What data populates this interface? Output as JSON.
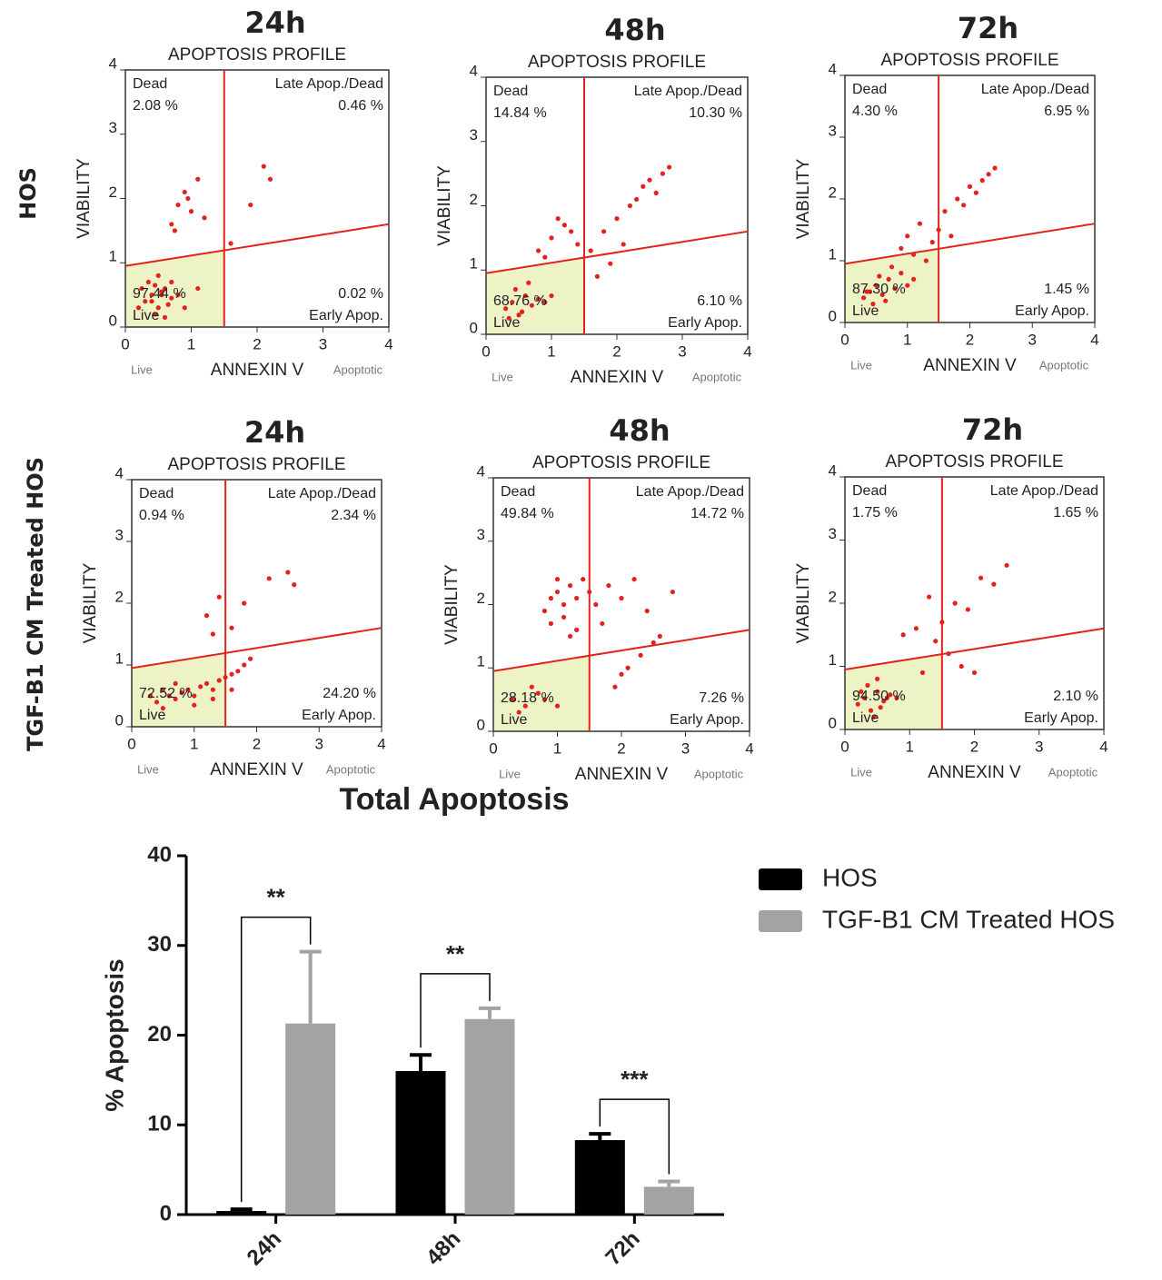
{
  "row_labels": [
    "HOS",
    "TGF-B1 CM Treated HOS"
  ],
  "chart_data": [
    {
      "type": "scatter",
      "title": "24h",
      "subtitle": "APOPTOSIS PROFILE",
      "xlabel": "ANNEXIN V",
      "ylabel": "VIABILITY",
      "x_end_labels": [
        "Live",
        "Apoptotic"
      ],
      "xlim": [
        0,
        4
      ],
      "ylim": [
        0,
        4
      ],
      "xticks": [
        0,
        1,
        2,
        3,
        4
      ],
      "yticks": [
        0,
        1,
        2,
        3,
        4
      ],
      "color": "#e3221c",
      "gate_x": 1.5,
      "gate_y": [
        0.95,
        1.6
      ],
      "quadrants": {
        "names": [
          "Dead",
          "Late Apop./Dead",
          "Live",
          "Early Apop."
        ],
        "values": [
          2.08,
          0.46,
          97.44,
          0.02
        ],
        "value_labels": [
          "2.08 %",
          "0.46 %",
          "97.44 %",
          "0.02 %"
        ]
      },
      "x": [
        0.3,
        0.4,
        0.5,
        0.6,
        0.7,
        0.35,
        0.45,
        0.55,
        0.65,
        0.25,
        0.5,
        0.6,
        0.4,
        0.8,
        0.9,
        1.1,
        0.2,
        0.7,
        0.55,
        0.45,
        0.7,
        0.8,
        0.9,
        1.0,
        1.1,
        0.75,
        0.95,
        1.2,
        1.6,
        1.9,
        2.1,
        2.2
      ],
      "y": [
        0.4,
        0.5,
        0.3,
        0.6,
        0.45,
        0.7,
        0.2,
        0.55,
        0.35,
        0.6,
        0.8,
        0.15,
        0.4,
        0.5,
        0.3,
        0.6,
        0.3,
        0.7,
        0.5,
        0.65,
        1.6,
        1.9,
        2.1,
        1.8,
        2.3,
        1.5,
        2.0,
        1.7,
        1.3,
        1.9,
        2.5,
        2.3
      ]
    },
    {
      "type": "scatter",
      "title": "48h",
      "subtitle": "APOPTOSIS PROFILE",
      "xlabel": "ANNEXIN V",
      "ylabel": "VIABILITY",
      "x_end_labels": [
        "Live",
        "Apoptotic"
      ],
      "xlim": [
        0,
        4
      ],
      "ylim": [
        0,
        4
      ],
      "xticks": [
        0,
        1,
        2,
        3,
        4
      ],
      "yticks": [
        0,
        1,
        2,
        3,
        4
      ],
      "color": "#e3221c",
      "gate_x": 1.5,
      "gate_y": [
        0.95,
        1.6
      ],
      "quadrants": {
        "names": [
          "Dead",
          "Late Apop./Dead",
          "Live",
          "Early Apop."
        ],
        "values": [
          14.84,
          10.3,
          68.76,
          6.1
        ],
        "value_labels": [
          "14.84 %",
          "10.30 %",
          "68.76 %",
          "6.10 %"
        ]
      },
      "x": [
        0.3,
        0.4,
        0.5,
        0.6,
        0.7,
        0.8,
        0.45,
        0.55,
        0.65,
        0.9,
        1.0,
        0.35,
        0.8,
        1.0,
        1.2,
        1.4,
        0.9,
        1.1,
        1.3,
        1.6,
        1.8,
        2.0,
        2.2,
        2.4,
        2.6,
        2.5,
        2.3,
        2.7,
        1.7,
        1.9,
        2.1,
        2.8
      ],
      "y": [
        0.4,
        0.5,
        0.3,
        0.6,
        0.45,
        0.55,
        0.7,
        0.35,
        0.8,
        0.5,
        0.6,
        0.25,
        1.3,
        1.5,
        1.7,
        1.4,
        1.2,
        1.8,
        1.6,
        1.3,
        1.6,
        1.8,
        2.0,
        2.3,
        2.2,
        2.4,
        2.1,
        2.5,
        0.9,
        1.1,
        1.4,
        2.6
      ]
    },
    {
      "type": "scatter",
      "title": "72h",
      "subtitle": "APOPTOSIS PROFILE",
      "xlabel": "ANNEXIN V",
      "ylabel": "VIABILITY",
      "x_end_labels": [
        "Live",
        "Apoptotic"
      ],
      "xlim": [
        0,
        4
      ],
      "ylim": [
        0,
        4
      ],
      "xticks": [
        0,
        1,
        2,
        3,
        4
      ],
      "yticks": [
        0,
        1,
        2,
        3,
        4
      ],
      "color": "#e3221c",
      "gate_x": 1.5,
      "gate_y": [
        0.95,
        1.6
      ],
      "quadrants": {
        "names": [
          "Dead",
          "Late Apop./Dead",
          "Live",
          "Early Apop."
        ],
        "values": [
          4.3,
          6.95,
          87.3,
          1.45
        ],
        "value_labels": [
          "4.30 %",
          "6.95 %",
          "87.30 %",
          "1.45 %"
        ]
      },
      "x": [
        0.3,
        0.4,
        0.5,
        0.6,
        0.7,
        0.8,
        0.9,
        1.0,
        0.45,
        0.55,
        0.65,
        0.75,
        0.35,
        1.1,
        1.3,
        1.0,
        1.2,
        1.4,
        1.6,
        1.8,
        2.0,
        2.2,
        2.4,
        2.1,
        1.9,
        2.3,
        0.9,
        1.1,
        1.5,
        1.7
      ],
      "y": [
        0.4,
        0.5,
        0.6,
        0.45,
        0.7,
        0.55,
        0.8,
        0.6,
        0.3,
        0.75,
        0.35,
        0.9,
        0.5,
        0.7,
        1.0,
        1.4,
        1.6,
        1.3,
        1.8,
        2.0,
        2.2,
        2.3,
        2.5,
        2.1,
        1.9,
        2.4,
        1.2,
        1.1,
        1.5,
        1.4
      ]
    },
    {
      "type": "scatter",
      "title": "24h",
      "subtitle": "APOPTOSIS PROFILE",
      "xlabel": "ANNEXIN V",
      "ylabel": "VIABILITY",
      "x_end_labels": [
        "Live",
        "Apoptotic"
      ],
      "xlim": [
        0,
        4
      ],
      "ylim": [
        0,
        4
      ],
      "xticks": [
        0,
        1,
        2,
        3,
        4
      ],
      "yticks": [
        0,
        1,
        2,
        3,
        4
      ],
      "color": "#e3221c",
      "gate_x": 1.5,
      "gate_y": [
        0.95,
        1.6
      ],
      "quadrants": {
        "names": [
          "Dead",
          "Late Apop./Dead",
          "Live",
          "Early Apop."
        ],
        "values": [
          0.94,
          2.34,
          72.52,
          24.2
        ],
        "value_labels": [
          "0.94 %",
          "2.34 %",
          "72.52 %",
          "24.20 %"
        ]
      },
      "x": [
        0.3,
        0.4,
        0.5,
        0.6,
        0.7,
        0.8,
        0.9,
        1.0,
        1.1,
        1.2,
        1.3,
        1.4,
        1.5,
        1.6,
        1.7,
        1.8,
        1.9,
        0.5,
        0.7,
        1.0,
        1.3,
        1.6,
        1.2,
        1.4,
        1.6,
        1.8,
        2.2,
        2.5,
        2.6,
        1.3
      ],
      "y": [
        0.5,
        0.4,
        0.6,
        0.5,
        0.45,
        0.55,
        0.6,
        0.5,
        0.65,
        0.7,
        0.6,
        0.75,
        0.8,
        0.85,
        0.9,
        1.0,
        1.1,
        0.3,
        0.7,
        0.35,
        0.45,
        0.6,
        1.8,
        2.1,
        1.6,
        2.0,
        2.4,
        2.5,
        2.3,
        1.5
      ]
    },
    {
      "type": "scatter",
      "title": "48h",
      "subtitle": "APOPTOSIS PROFILE",
      "xlabel": "ANNEXIN V",
      "ylabel": "VIABILITY",
      "x_end_labels": [
        "Live",
        "Apoptotic"
      ],
      "xlim": [
        0,
        4
      ],
      "ylim": [
        0,
        4
      ],
      "xticks": [
        0,
        1,
        2,
        3,
        4
      ],
      "yticks": [
        0,
        1,
        2,
        3,
        4
      ],
      "color": "#e3221c",
      "gate_x": 1.5,
      "gate_y": [
        0.95,
        1.6
      ],
      "quadrants": {
        "names": [
          "Dead",
          "Late Apop./Dead",
          "Live",
          "Early Apop."
        ],
        "values": [
          49.84,
          14.72,
          28.18,
          7.26
        ],
        "value_labels": [
          "49.84 %",
          "14.72 %",
          "28.18 %",
          "7.26 %"
        ]
      },
      "x": [
        0.3,
        0.5,
        0.7,
        0.4,
        0.6,
        0.8,
        1.0,
        0.8,
        0.9,
        1.0,
        1.1,
        1.2,
        1.3,
        1.4,
        1.5,
        1.6,
        0.9,
        1.1,
        1.3,
        1.0,
        1.2,
        1.8,
        2.0,
        2.2,
        2.4,
        2.6,
        2.8,
        2.0,
        2.3,
        1.9,
        2.1,
        2.5,
        1.7
      ],
      "y": [
        0.5,
        0.4,
        0.6,
        0.3,
        0.7,
        0.5,
        0.4,
        1.9,
        2.1,
        2.2,
        2.0,
        2.3,
        2.1,
        2.4,
        2.2,
        2.0,
        1.7,
        1.8,
        1.6,
        2.4,
        1.5,
        2.3,
        2.1,
        2.4,
        1.9,
        1.5,
        2.2,
        0.9,
        1.2,
        0.7,
        1.0,
        1.4,
        1.7
      ]
    },
    {
      "type": "scatter",
      "title": "72h",
      "subtitle": "APOPTOSIS PROFILE",
      "xlabel": "ANNEXIN V",
      "ylabel": "VIABILITY",
      "x_end_labels": [
        "Live",
        "Apoptotic"
      ],
      "xlim": [
        0,
        4
      ],
      "ylim": [
        0,
        4
      ],
      "xticks": [
        0,
        1,
        2,
        3,
        4
      ],
      "yticks": [
        0,
        1,
        2,
        3,
        4
      ],
      "color": "#e3221c",
      "gate_x": 1.5,
      "gate_y": [
        0.95,
        1.6
      ],
      "quadrants": {
        "names": [
          "Dead",
          "Late Apop./Dead",
          "Live",
          "Early Apop."
        ],
        "values": [
          1.75,
          1.65,
          94.5,
          2.1
        ],
        "value_labels": [
          "1.75 %",
          "1.65 %",
          "94.50 %",
          "2.10 %"
        ]
      },
      "x": [
        0.2,
        0.3,
        0.4,
        0.5,
        0.6,
        0.7,
        0.35,
        0.45,
        0.55,
        0.65,
        0.25,
        0.5,
        0.8,
        0.9,
        1.1,
        1.3,
        1.5,
        1.7,
        1.9,
        2.1,
        2.3,
        2.5,
        1.4,
        1.6,
        1.8,
        2.0,
        1.2
      ],
      "y": [
        0.4,
        0.5,
        0.3,
        0.6,
        0.45,
        0.55,
        0.7,
        0.2,
        0.35,
        0.5,
        0.6,
        0.8,
        0.5,
        1.5,
        1.6,
        2.1,
        1.7,
        2.0,
        1.9,
        2.4,
        2.3,
        2.6,
        1.4,
        1.2,
        1.0,
        0.9,
        0.9
      ]
    },
    {
      "type": "bar",
      "title": "Total Apoptosis",
      "ylabel": "% Apoptosis",
      "categories": [
        "24h",
        "48h",
        "72h"
      ],
      "series": [
        {
          "name": "HOS",
          "color": "#000000",
          "values": [
            0.4,
            16,
            8.3
          ],
          "errors": [
            0.2,
            1.8,
            0.7
          ]
        },
        {
          "name": "TGF-B1 CM Treated HOS",
          "color": "#a3a3a6",
          "values": [
            21.3,
            21.8,
            3.1
          ],
          "errors": [
            8,
            1.2,
            0.6
          ]
        }
      ],
      "significance": [
        "**",
        "**",
        "***"
      ],
      "ylim": [
        0,
        40
      ],
      "yticks": [
        0,
        10,
        20,
        30,
        40
      ]
    }
  ]
}
